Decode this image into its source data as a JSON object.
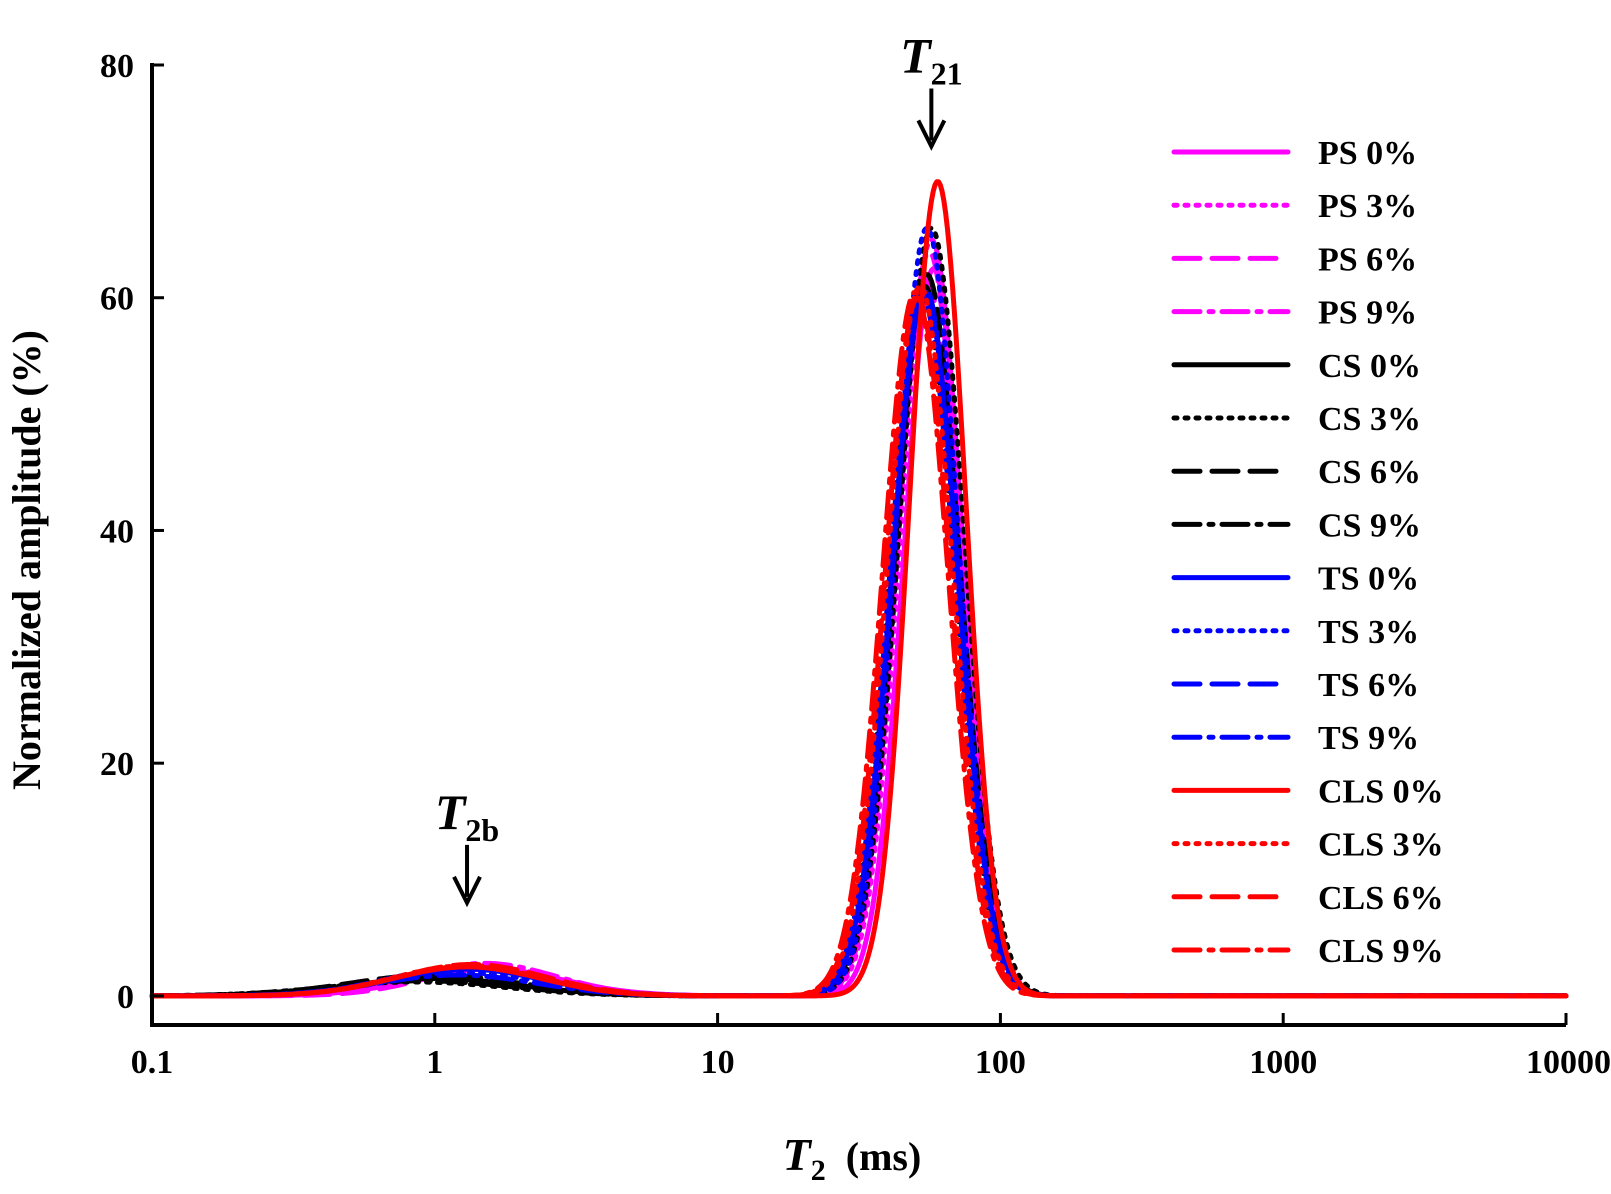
{
  "chart_data": {
    "type": "line",
    "xlabel": {
      "symbol": "T",
      "subscript": "2",
      "unit": "(ms)"
    },
    "ylabel": "Normalized amplitude (%)",
    "x_scale": "log",
    "xlim": [
      0.1,
      10000
    ],
    "ylim": [
      -2.5,
      80
    ],
    "x_ticks": [
      0.1,
      1,
      10,
      100,
      1000,
      10000
    ],
    "x_tick_labels": [
      "0.1",
      "1",
      "10",
      "100",
      "1000",
      "10000"
    ],
    "y_ticks": [
      0,
      20,
      40,
      60,
      80
    ],
    "y_tick_labels": [
      "0",
      "20",
      "40",
      "60",
      "80"
    ],
    "grid": false,
    "legend_position": "right",
    "annotations": [
      {
        "symbol": "T",
        "subscript": "2b",
        "x": 1.3,
        "y": 8
      },
      {
        "symbol": "T",
        "subscript": "21",
        "x": 57,
        "y": 73
      }
    ],
    "series": [
      {
        "name": "PS 0%",
        "color": "#ff00ff",
        "dash": "solid",
        "peak1": {
          "center": 1.55,
          "amp": 2.3,
          "width": 0.26
        },
        "peak2": {
          "center": 58,
          "amp": 62.5,
          "width": 0.105
        }
      },
      {
        "name": "PS 3%",
        "color": "#ff00ff",
        "dash": "dot",
        "peak1": {
          "center": 1.5,
          "amp": 2.4,
          "width": 0.26
        },
        "peak2": {
          "center": 57,
          "amp": 65.0,
          "width": 0.11
        }
      },
      {
        "name": "PS 6%",
        "color": "#ff00ff",
        "dash": "dash",
        "peak1": {
          "center": 1.6,
          "amp": 2.4,
          "width": 0.24
        },
        "peak2": {
          "center": 56,
          "amp": 64.0,
          "width": 0.11
        }
      },
      {
        "name": "PS 9%",
        "color": "#ff00ff",
        "dash": "dashdot",
        "peak1": {
          "center": 1.5,
          "amp": 2.8,
          "width": 0.25
        },
        "peak2": {
          "center": 55,
          "amp": 61.5,
          "width": 0.11
        }
      },
      {
        "name": "CS 0%",
        "color": "#000000",
        "dash": "solid",
        "peak1": {
          "center": 1.0,
          "amp": 1.5,
          "width": 0.3
        },
        "peak2": {
          "center": 54,
          "amp": 61.0,
          "width": 0.115
        }
      },
      {
        "name": "CS 3%",
        "color": "#000000",
        "dash": "dot",
        "peak1": {
          "center": 0.85,
          "amp": 1.2,
          "width": 0.32
        },
        "peak2": {
          "center": 57,
          "amp": 66.0,
          "width": 0.115
        }
      },
      {
        "name": "CS 6%",
        "color": "#000000",
        "dash": "dash",
        "peak1": {
          "center": 1.0,
          "amp": 1.8,
          "width": 0.3
        },
        "peak2": {
          "center": 55,
          "amp": 62.0,
          "width": 0.115
        }
      },
      {
        "name": "CS 9%",
        "color": "#000000",
        "dash": "dashdot",
        "peak1": {
          "center": 0.9,
          "amp": 1.3,
          "width": 0.32
        },
        "peak2": {
          "center": 53,
          "amp": 60.0,
          "width": 0.115
        }
      },
      {
        "name": "TS 0%",
        "color": "#0000ff",
        "dash": "solid",
        "peak1": {
          "center": 1.3,
          "amp": 2.3,
          "width": 0.27
        },
        "peak2": {
          "center": 54,
          "amp": 60.5,
          "width": 0.115
        }
      },
      {
        "name": "TS 3%",
        "color": "#0000ff",
        "dash": "dot",
        "peak1": {
          "center": 1.25,
          "amp": 2.0,
          "width": 0.28
        },
        "peak2": {
          "center": 55,
          "amp": 66.0,
          "width": 0.11
        }
      },
      {
        "name": "TS 6%",
        "color": "#0000ff",
        "dash": "dash",
        "peak1": {
          "center": 1.3,
          "amp": 2.5,
          "width": 0.27
        },
        "peak2": {
          "center": 54,
          "amp": 61.0,
          "width": 0.115
        }
      },
      {
        "name": "TS 9%",
        "color": "#0000ff",
        "dash": "dashdot",
        "peak1": {
          "center": 1.2,
          "amp": 1.8,
          "width": 0.28
        },
        "peak2": {
          "center": 53,
          "amp": 60.0,
          "width": 0.115
        }
      },
      {
        "name": "CLS 0%",
        "color": "#ff0000",
        "dash": "solid",
        "peak1": {
          "center": 1.3,
          "amp": 2.5,
          "width": 0.26
        },
        "peak2": {
          "center": 60,
          "amp": 70.0,
          "width": 0.1
        }
      },
      {
        "name": "CLS 3%",
        "color": "#ff0000",
        "dash": "dot",
        "peak1": {
          "center": 1.3,
          "amp": 2.6,
          "width": 0.26
        },
        "peak2": {
          "center": 52,
          "amp": 61.0,
          "width": 0.115
        }
      },
      {
        "name": "CLS 6%",
        "color": "#ff0000",
        "dash": "dash",
        "peak1": {
          "center": 1.35,
          "amp": 2.7,
          "width": 0.26
        },
        "peak2": {
          "center": 51,
          "amp": 60.0,
          "width": 0.115
        }
      },
      {
        "name": "CLS 9%",
        "color": "#ff0000",
        "dash": "dashdot",
        "peak1": {
          "center": 1.3,
          "amp": 2.5,
          "width": 0.26
        },
        "peak2": {
          "center": 50,
          "amp": 60.5,
          "width": 0.115
        }
      }
    ]
  }
}
